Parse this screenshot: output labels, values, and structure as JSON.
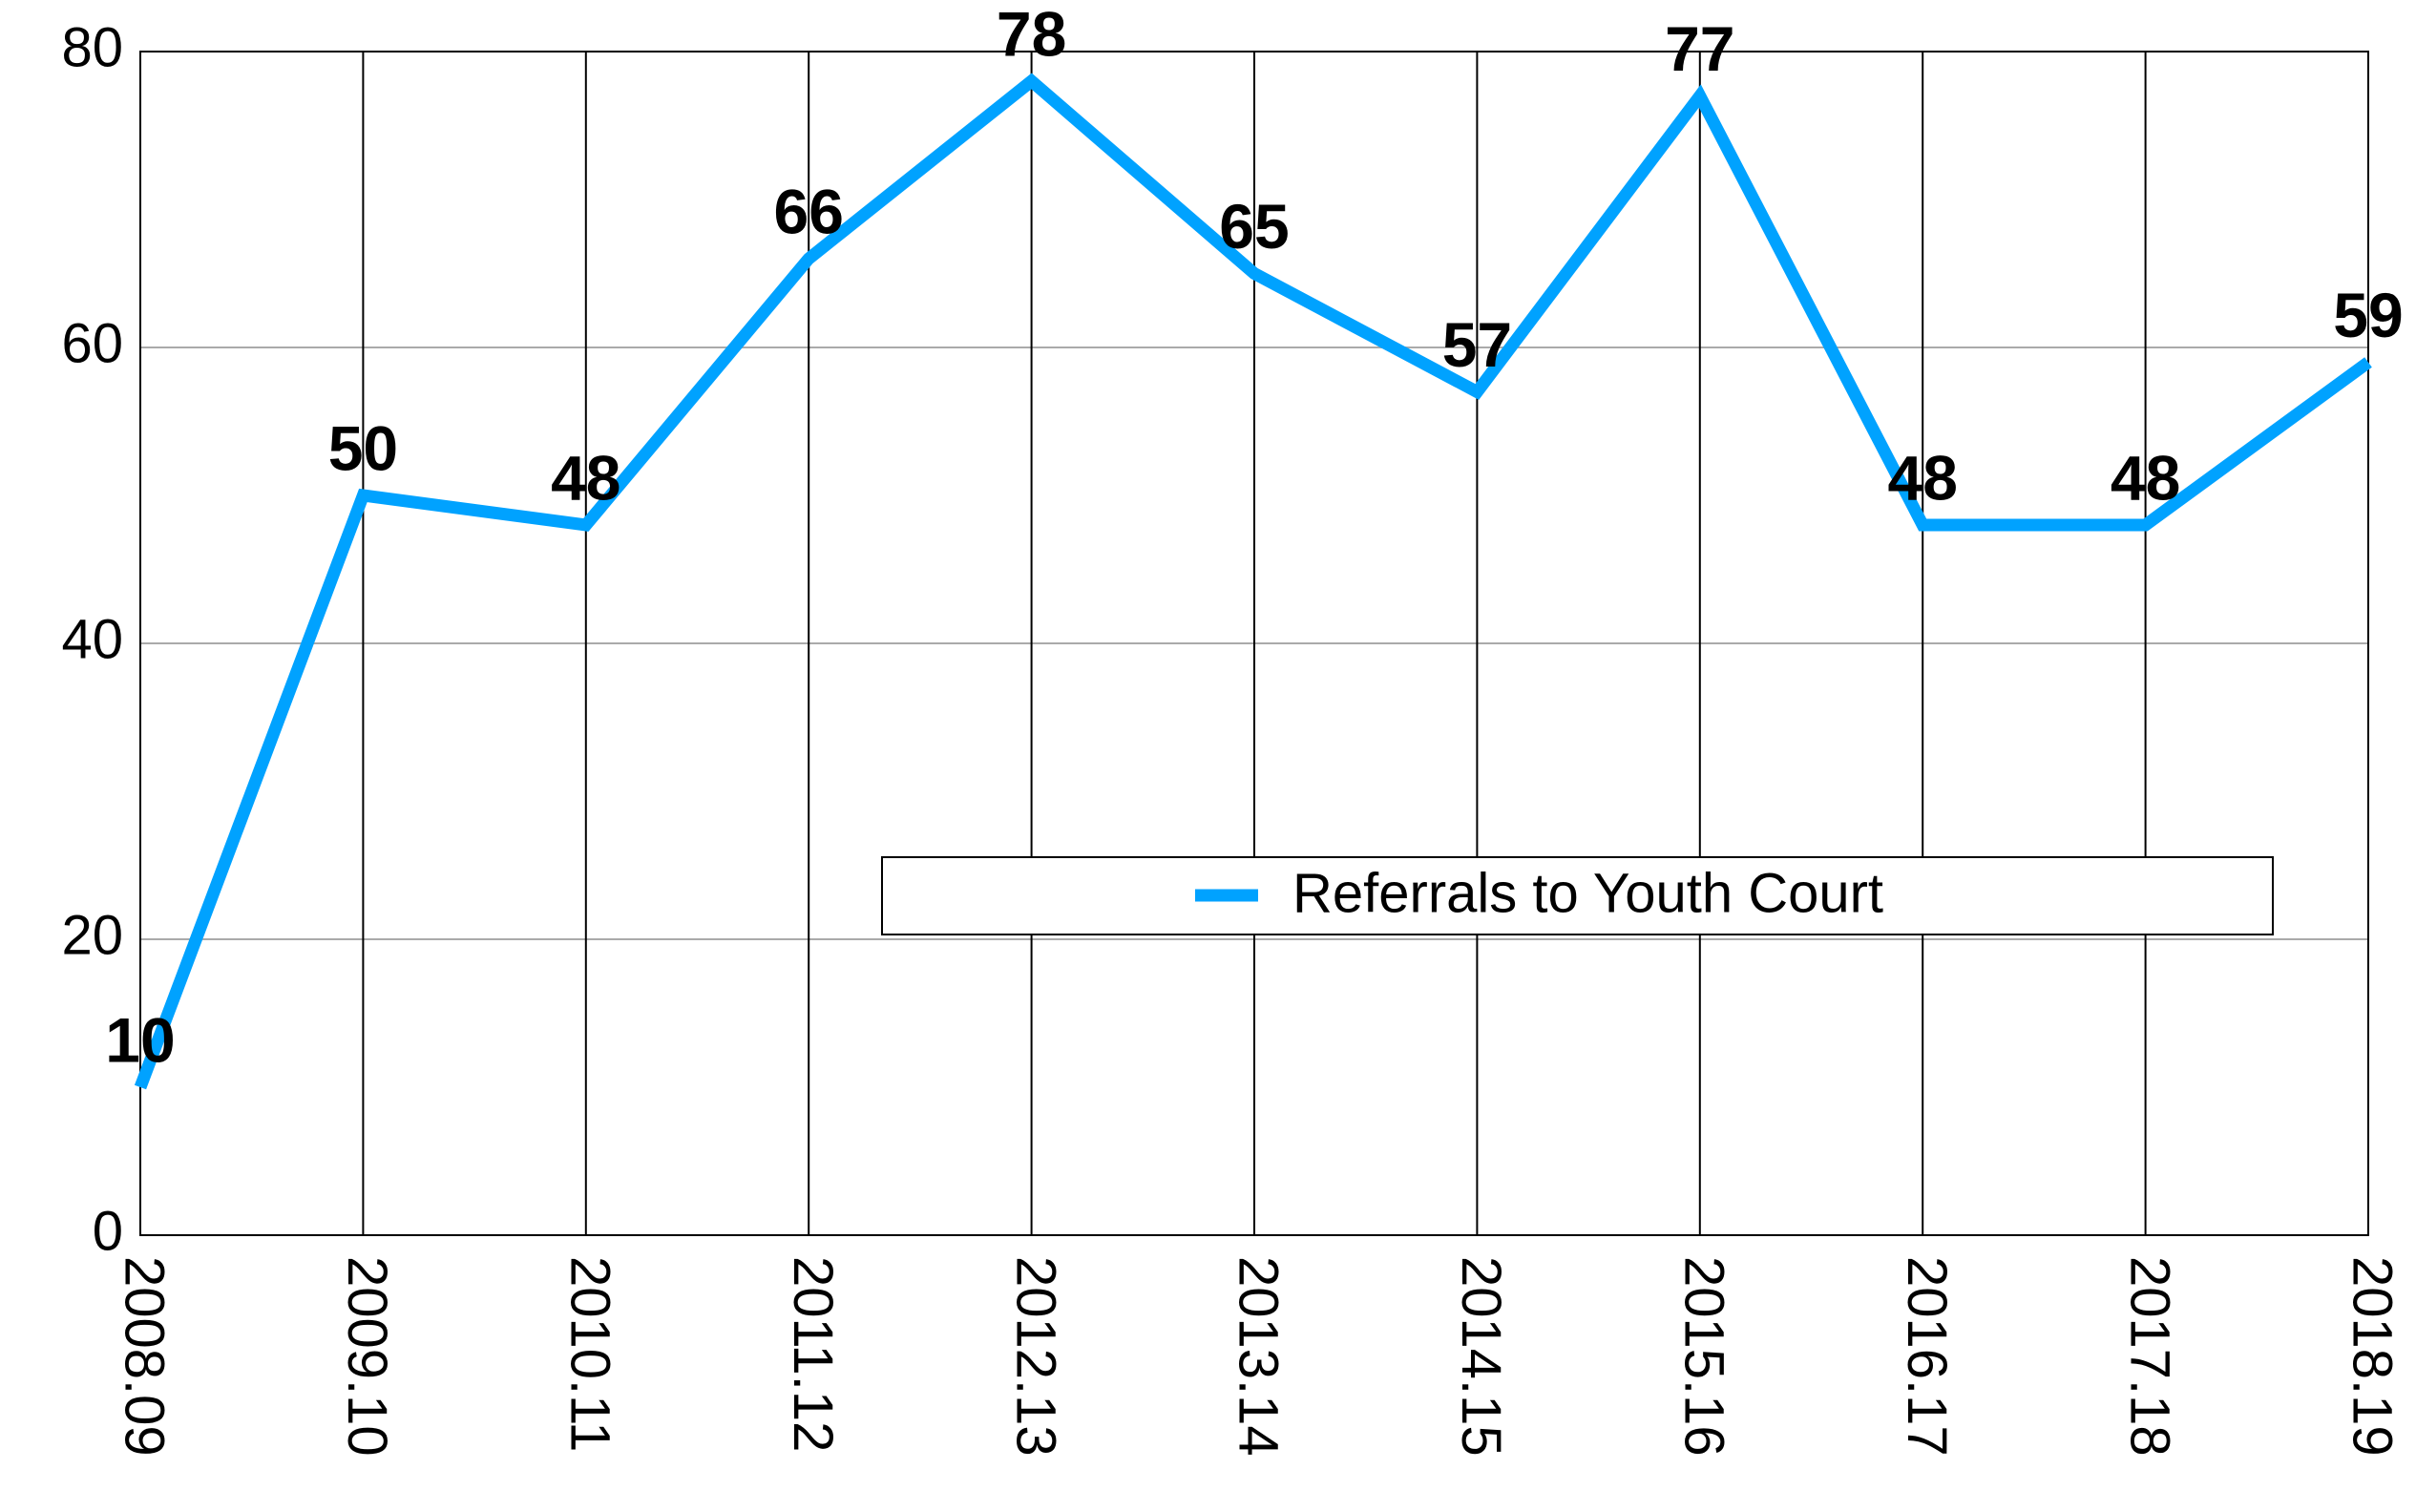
{
  "chart_data": {
    "type": "line",
    "categories": [
      "2008.09",
      "2009.10",
      "2010.11",
      "2011.12",
      "2012.13",
      "2013.14",
      "2014.15",
      "2015.16",
      "2016.17",
      "2017.18",
      "2018.19"
    ],
    "series": [
      {
        "name": "Referrals to Youth Court",
        "color": "#00a2ff",
        "values": [
          10,
          50,
          48,
          66,
          78,
          65,
          57,
          77,
          48,
          48,
          59
        ]
      }
    ],
    "ylim": [
      0,
      80
    ],
    "yticks": [
      0,
      20,
      40,
      60,
      80
    ],
    "grid": true,
    "legend": "center"
  }
}
